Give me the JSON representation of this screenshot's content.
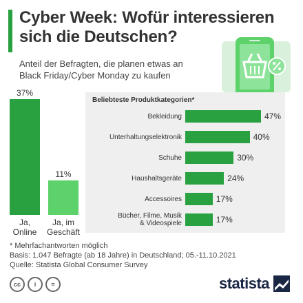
{
  "header": {
    "title_line1": "Cyber Week: Wofür interessieren",
    "title_line2": "sich die Deutschen?",
    "subtitle_line1": "Anteil der Befragten, die planen etwas an",
    "subtitle_line2": "Black Friday/Cyber Monday zu kaufen"
  },
  "colors": {
    "accent": "#2aa140",
    "accent_light": "#5dd16a",
    "panel_bg": "#efefef",
    "logo": "#1a2744"
  },
  "icon": "shopping-basket-smartphone-icon",
  "chart_data": [
    {
      "type": "bar",
      "categories": [
        "Ja, Online",
        "Ja, im Geschäft"
      ],
      "category_lines": [
        [
          "Ja,",
          "Online"
        ],
        [
          "Ja, im",
          "Geschäft"
        ]
      ],
      "values": [
        37,
        11
      ],
      "value_labels": [
        "37%",
        "11%"
      ],
      "colors": [
        "#2aa140",
        "#5dd16a"
      ],
      "title": "",
      "ylim": [
        0,
        37
      ]
    },
    {
      "type": "bar",
      "orientation": "horizontal",
      "title": "Beliebteste Produktkategorien*",
      "categories": [
        "Bekleidung",
        "Unterhaltungselektronik",
        "Schuhe",
        "Haushaltsgeräte",
        "Accessoires",
        "Bücher, Filme, Musik & Videospiele"
      ],
      "category_lines": [
        [
          "Bekleidung"
        ],
        [
          "Unterhaltungselektronik"
        ],
        [
          "Schuhe"
        ],
        [
          "Haushaltsgeräte"
        ],
        [
          "Accessoires"
        ],
        [
          "Bücher, Filme, Musik",
          "& Videospiele"
        ]
      ],
      "values": [
        47,
        40,
        30,
        24,
        17,
        17
      ],
      "value_labels": [
        "47%",
        "40%",
        "30%",
        "24%",
        "17%",
        "17%"
      ],
      "xlim": [
        0,
        47
      ]
    }
  ],
  "footnotes": {
    "note": "* Mehrfachantworten möglich",
    "basis": "Basis: 1.047 Befragte (ab 18 Jahre) in Deutschland; 05.-11.10.2021",
    "source": "Quelle: Statista Global Consumer Survey"
  },
  "license_icons": [
    "cc",
    "i",
    "="
  ],
  "logo": {
    "text": "statista"
  }
}
